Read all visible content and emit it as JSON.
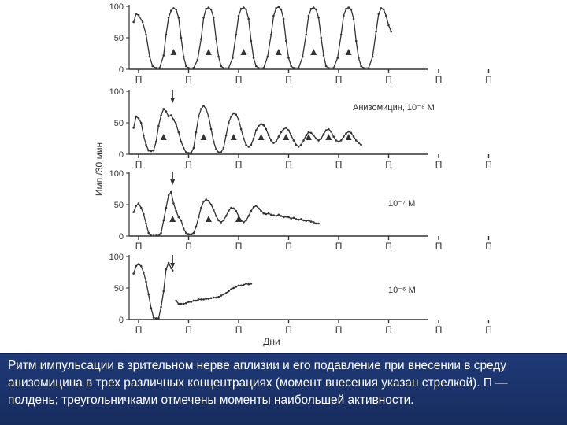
{
  "chart_data": {
    "type": "line",
    "ylabel": "Имп./30 мин",
    "xlabel": "Дни",
    "ylim": [
      0,
      100
    ],
    "yticks": [
      "0",
      "50",
      "100"
    ],
    "xlim": [
      0,
      7.2
    ],
    "noon_label": "П",
    "noon_days": [
      0,
      1,
      2,
      3,
      4,
      5,
      6,
      7
    ],
    "panels": [
      {
        "label": "",
        "points": [
          [
            -0.1,
            75
          ],
          [
            -0.05,
            88
          ],
          [
            0,
            86
          ],
          [
            0.08,
            75
          ],
          [
            0.15,
            55
          ],
          [
            0.22,
            20
          ],
          [
            0.28,
            5
          ],
          [
            0.35,
            2
          ],
          [
            0.42,
            2
          ],
          [
            0.5,
            22
          ],
          [
            0.55,
            55
          ],
          [
            0.6,
            82
          ],
          [
            0.65,
            93
          ],
          [
            0.7,
            97
          ],
          [
            0.75,
            95
          ],
          [
            0.8,
            82
          ],
          [
            0.85,
            50
          ],
          [
            0.9,
            20
          ],
          [
            0.95,
            5
          ],
          [
            1.0,
            2
          ],
          [
            1.1,
            2
          ],
          [
            1.18,
            15
          ],
          [
            1.25,
            48
          ],
          [
            1.3,
            82
          ],
          [
            1.35,
            96
          ],
          [
            1.4,
            98
          ],
          [
            1.45,
            95
          ],
          [
            1.5,
            82
          ],
          [
            1.55,
            48
          ],
          [
            1.6,
            20
          ],
          [
            1.65,
            5
          ],
          [
            1.7,
            2
          ],
          [
            1.8,
            2
          ],
          [
            1.88,
            18
          ],
          [
            1.95,
            55
          ],
          [
            2.0,
            85
          ],
          [
            2.05,
            96
          ],
          [
            2.1,
            98
          ],
          [
            2.15,
            95
          ],
          [
            2.2,
            80
          ],
          [
            2.25,
            45
          ],
          [
            2.3,
            18
          ],
          [
            2.35,
            5
          ],
          [
            2.4,
            2
          ],
          [
            2.5,
            2
          ],
          [
            2.58,
            20
          ],
          [
            2.65,
            55
          ],
          [
            2.7,
            85
          ],
          [
            2.75,
            97
          ],
          [
            2.8,
            99
          ],
          [
            2.85,
            95
          ],
          [
            2.9,
            80
          ],
          [
            2.95,
            45
          ],
          [
            3.0,
            18
          ],
          [
            3.05,
            5
          ],
          [
            3.1,
            2
          ],
          [
            3.2,
            2
          ],
          [
            3.28,
            20
          ],
          [
            3.35,
            55
          ],
          [
            3.4,
            85
          ],
          [
            3.45,
            96
          ],
          [
            3.5,
            98
          ],
          [
            3.55,
            95
          ],
          [
            3.6,
            82
          ],
          [
            3.65,
            50
          ],
          [
            3.7,
            22
          ],
          [
            3.75,
            5
          ],
          [
            3.8,
            2
          ],
          [
            3.9,
            2
          ],
          [
            3.98,
            18
          ],
          [
            4.05,
            55
          ],
          [
            4.1,
            85
          ],
          [
            4.15,
            96
          ],
          [
            4.2,
            98
          ],
          [
            4.25,
            95
          ],
          [
            4.3,
            80
          ],
          [
            4.35,
            45
          ],
          [
            4.4,
            18
          ],
          [
            4.45,
            5
          ],
          [
            4.5,
            2
          ],
          [
            4.6,
            2
          ],
          [
            4.68,
            20
          ],
          [
            4.75,
            60
          ],
          [
            4.8,
            88
          ],
          [
            4.85,
            97
          ],
          [
            4.9,
            95
          ],
          [
            4.95,
            85
          ],
          [
            5.0,
            70
          ],
          [
            5.05,
            60
          ]
        ],
        "peak_days": [
          0.7,
          1.4,
          2.1,
          2.8,
          3.5,
          4.2
        ]
      },
      {
        "label": "Анизомицин, 10⁻⁸ М",
        "arrow_day": 0.68,
        "points": [
          [
            -0.1,
            42
          ],
          [
            -0.05,
            60
          ],
          [
            0,
            57
          ],
          [
            0.05,
            50
          ],
          [
            0.1,
            30
          ],
          [
            0.15,
            15
          ],
          [
            0.2,
            6
          ],
          [
            0.25,
            5
          ],
          [
            0.3,
            6
          ],
          [
            0.35,
            20
          ],
          [
            0.4,
            45
          ],
          [
            0.45,
            62
          ],
          [
            0.5,
            72
          ],
          [
            0.55,
            68
          ],
          [
            0.6,
            60
          ],
          [
            0.65,
            62
          ],
          [
            0.7,
            55
          ],
          [
            0.75,
            48
          ],
          [
            0.8,
            35
          ],
          [
            0.85,
            20
          ],
          [
            0.9,
            10
          ],
          [
            0.95,
            3
          ],
          [
            1.0,
            2
          ],
          [
            1.05,
            2
          ],
          [
            1.1,
            10
          ],
          [
            1.15,
            35
          ],
          [
            1.2,
            60
          ],
          [
            1.25,
            72
          ],
          [
            1.3,
            77
          ],
          [
            1.35,
            72
          ],
          [
            1.4,
            60
          ],
          [
            1.45,
            40
          ],
          [
            1.5,
            20
          ],
          [
            1.55,
            8
          ],
          [
            1.6,
            3
          ],
          [
            1.65,
            3
          ],
          [
            1.7,
            10
          ],
          [
            1.75,
            30
          ],
          [
            1.8,
            50
          ],
          [
            1.85,
            60
          ],
          [
            1.9,
            65
          ],
          [
            1.95,
            63
          ],
          [
            2.0,
            55
          ],
          [
            2.05,
            40
          ],
          [
            2.1,
            25
          ],
          [
            2.15,
            15
          ],
          [
            2.2,
            12
          ],
          [
            2.25,
            15
          ],
          [
            2.3,
            25
          ],
          [
            2.35,
            38
          ],
          [
            2.4,
            45
          ],
          [
            2.45,
            48
          ],
          [
            2.5,
            46
          ],
          [
            2.55,
            40
          ],
          [
            2.6,
            30
          ],
          [
            2.65,
            22
          ],
          [
            2.7,
            18
          ],
          [
            2.75,
            20
          ],
          [
            2.8,
            28
          ],
          [
            2.85,
            35
          ],
          [
            2.9,
            40
          ],
          [
            2.95,
            42
          ],
          [
            3.0,
            38
          ],
          [
            3.05,
            30
          ],
          [
            3.1,
            22
          ],
          [
            3.15,
            15
          ],
          [
            3.2,
            12
          ],
          [
            3.25,
            15
          ],
          [
            3.3,
            22
          ],
          [
            3.35,
            30
          ],
          [
            3.4,
            35
          ],
          [
            3.45,
            34
          ],
          [
            3.5,
            30
          ],
          [
            3.55,
            25
          ],
          [
            3.6,
            22
          ],
          [
            3.65,
            25
          ],
          [
            3.7,
            32
          ],
          [
            3.75,
            38
          ],
          [
            3.8,
            40
          ],
          [
            3.85,
            36
          ],
          [
            3.9,
            28
          ],
          [
            3.95,
            22
          ],
          [
            4.0,
            20
          ],
          [
            4.05,
            22
          ],
          [
            4.1,
            28
          ],
          [
            4.15,
            33
          ],
          [
            4.2,
            36
          ],
          [
            4.25,
            34
          ],
          [
            4.3,
            28
          ],
          [
            4.35,
            22
          ],
          [
            4.4,
            18
          ],
          [
            4.45,
            15
          ]
        ],
        "peak_days": [
          0.5,
          1.3,
          1.9,
          2.45,
          2.95,
          3.4,
          3.8,
          4.2
        ]
      },
      {
        "label": "10⁻⁷ М",
        "arrow_day": 0.68,
        "points": [
          [
            -0.1,
            38
          ],
          [
            -0.05,
            48
          ],
          [
            0,
            52
          ],
          [
            0.05,
            45
          ],
          [
            0.1,
            35
          ],
          [
            0.15,
            20
          ],
          [
            0.2,
            5
          ],
          [
            0.25,
            2
          ],
          [
            0.3,
            2
          ],
          [
            0.35,
            2
          ],
          [
            0.4,
            2
          ],
          [
            0.45,
            5
          ],
          [
            0.5,
            25
          ],
          [
            0.55,
            45
          ],
          [
            0.6,
            65
          ],
          [
            0.65,
            70
          ],
          [
            0.7,
            52
          ],
          [
            0.75,
            40
          ],
          [
            0.8,
            30
          ],
          [
            0.85,
            25
          ],
          [
            0.9,
            12
          ],
          [
            0.95,
            5
          ],
          [
            1.0,
            3
          ],
          [
            1.05,
            3
          ],
          [
            1.1,
            5
          ],
          [
            1.15,
            15
          ],
          [
            1.2,
            30
          ],
          [
            1.25,
            45
          ],
          [
            1.3,
            55
          ],
          [
            1.35,
            58
          ],
          [
            1.4,
            56
          ],
          [
            1.45,
            50
          ],
          [
            1.5,
            42
          ],
          [
            1.55,
            32
          ],
          [
            1.6,
            25
          ],
          [
            1.65,
            22
          ],
          [
            1.7,
            25
          ],
          [
            1.75,
            32
          ],
          [
            1.8,
            40
          ],
          [
            1.85,
            45
          ],
          [
            1.9,
            44
          ],
          [
            1.95,
            40
          ],
          [
            2.0,
            32
          ],
          [
            2.05,
            25
          ],
          [
            2.1,
            22
          ],
          [
            2.15,
            25
          ],
          [
            2.2,
            32
          ],
          [
            2.25,
            40
          ],
          [
            2.3,
            46
          ],
          [
            2.35,
            48
          ],
          [
            2.4,
            44
          ],
          [
            2.45,
            40
          ],
          [
            2.5,
            36
          ],
          [
            2.55,
            35
          ],
          [
            2.6,
            36
          ],
          [
            2.65,
            34
          ],
          [
            2.7,
            33
          ],
          [
            2.75,
            32
          ],
          [
            2.8,
            34
          ],
          [
            2.85,
            32
          ],
          [
            2.9,
            30
          ],
          [
            2.95,
            31
          ],
          [
            3.0,
            30
          ],
          [
            3.05,
            28
          ],
          [
            3.1,
            29
          ],
          [
            3.15,
            27
          ],
          [
            3.2,
            26
          ],
          [
            3.25,
            27
          ],
          [
            3.3,
            25
          ],
          [
            3.35,
            24
          ],
          [
            3.4,
            25
          ],
          [
            3.45,
            23
          ],
          [
            3.5,
            22
          ],
          [
            3.55,
            20
          ],
          [
            3.6,
            20
          ]
        ],
        "peak_days": [
          0.68,
          1.4,
          2.0
        ]
      },
      {
        "label": "10⁻⁶ М",
        "arrow_day": 0.68,
        "points": [
          [
            -0.1,
            73
          ],
          [
            -0.05,
            85
          ],
          [
            0,
            88
          ],
          [
            0.05,
            85
          ],
          [
            0.1,
            75
          ],
          [
            0.15,
            60
          ],
          [
            0.2,
            40
          ],
          [
            0.25,
            18
          ],
          [
            0.3,
            3
          ],
          [
            0.35,
            2
          ],
          [
            0.4,
            2
          ],
          [
            0.45,
            20
          ],
          [
            0.5,
            45
          ],
          [
            0.55,
            80
          ],
          [
            0.6,
            90
          ],
          [
            0.65,
            82
          ],
          [
            0.68,
            78
          ],
          null,
          [
            0.75,
            30
          ],
          [
            0.8,
            25
          ],
          [
            0.85,
            25
          ],
          [
            0.9,
            25
          ],
          [
            0.95,
            26
          ],
          [
            1.0,
            28
          ],
          [
            1.05,
            28
          ],
          [
            1.1,
            30
          ],
          [
            1.15,
            30
          ],
          [
            1.2,
            32
          ],
          [
            1.25,
            32
          ],
          [
            1.3,
            32
          ],
          [
            1.35,
            33
          ],
          [
            1.4,
            33
          ],
          [
            1.45,
            34
          ],
          [
            1.5,
            35
          ],
          [
            1.55,
            35
          ],
          [
            1.6,
            36
          ],
          [
            1.65,
            38
          ],
          [
            1.7,
            40
          ],
          [
            1.75,
            42
          ],
          [
            1.8,
            45
          ],
          [
            1.85,
            48
          ],
          [
            1.9,
            50
          ],
          [
            1.95,
            52
          ],
          [
            2.0,
            54
          ],
          [
            2.05,
            54
          ],
          [
            2.1,
            55
          ],
          [
            2.15,
            57
          ],
          [
            2.2,
            56
          ],
          [
            2.25,
            57
          ]
        ],
        "peak_days": []
      }
    ]
  },
  "caption": "Ритм импульсации в зрительном нерве аплизии и его подавление при внесении в среду анизомицина в трех различных концентрациях (момент внесения указан стрелкой). П — полдень; треугольничками отмечены моменты наибольшей активности.",
  "colors": {
    "line": "#333333",
    "caption_bg": "#1f3a78",
    "caption_text": "#ffffff"
  }
}
